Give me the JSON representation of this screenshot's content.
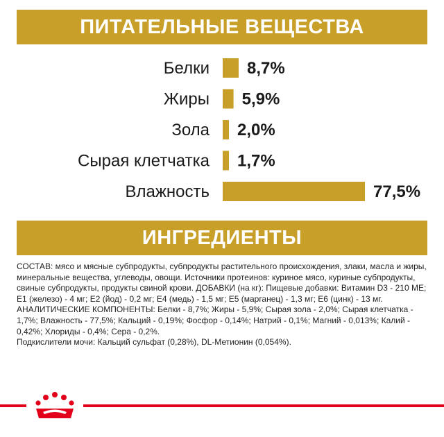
{
  "nutrients_title": "ПИТАТЕЛЬНЫЕ ВЕЩЕСТВА",
  "ingredients_title": "ИНГРЕДИЕНТЫ",
  "chart_data": {
    "type": "bar",
    "orientation": "horizontal",
    "categories": [
      "Белки",
      "Жиры",
      "Зола",
      "Сырая клетчатка",
      "Влажность"
    ],
    "values": [
      8.7,
      5.9,
      2.0,
      1.7,
      77.5
    ],
    "value_labels": [
      "8,7%",
      "5,9%",
      "2,0%",
      "1,7%",
      "77,5%"
    ],
    "unit": "%",
    "bar_color": "#c8a029"
  },
  "ingredients_text": "СОСТАВ: мясо и мясные субпродукты, субпродукты растительного происхождения, злаки, масла и жиры, минеральные вещества, углеводы, овощи. Источники протеинов: куриное мясо, куриные субпродукты, свиные субпродукты, продукты свиной крови. ДОБАВКИ (на кг): Пищевые добавки: Витамин D3 - 210 МЕ; Е1 (железо) - 4 мг; Е2 (йод) - 0,2 мг; Е4 (медь) - 1,5 мг; Е5 (марганец) - 1,3 мг; Е6 (цинк) - 13 мг. АНАЛИТИЧЕСКИЕ КОМПОНЕНТЫ: Белки - 8,7%; Жиры - 5,9%; Сырая зола - 2,0%; Сырая клетчатка - 1,7%; Влажность - 77,5%; Кальций - 0,19%; Фосфор - 0,14%; Натрий - 0,1%; Магний - 0,013%; Калий - 0,42%; Хлориды - 0,4%; Сера - 0,2%.\nПодкислители мочи: Кальций сульфат (0,28%), DL-Метионин (0,054%).",
  "colors": {
    "accent": "#c8a029",
    "brand_red": "#e2001a"
  },
  "icons": {
    "brand": "royal-canin-crown-icon"
  }
}
